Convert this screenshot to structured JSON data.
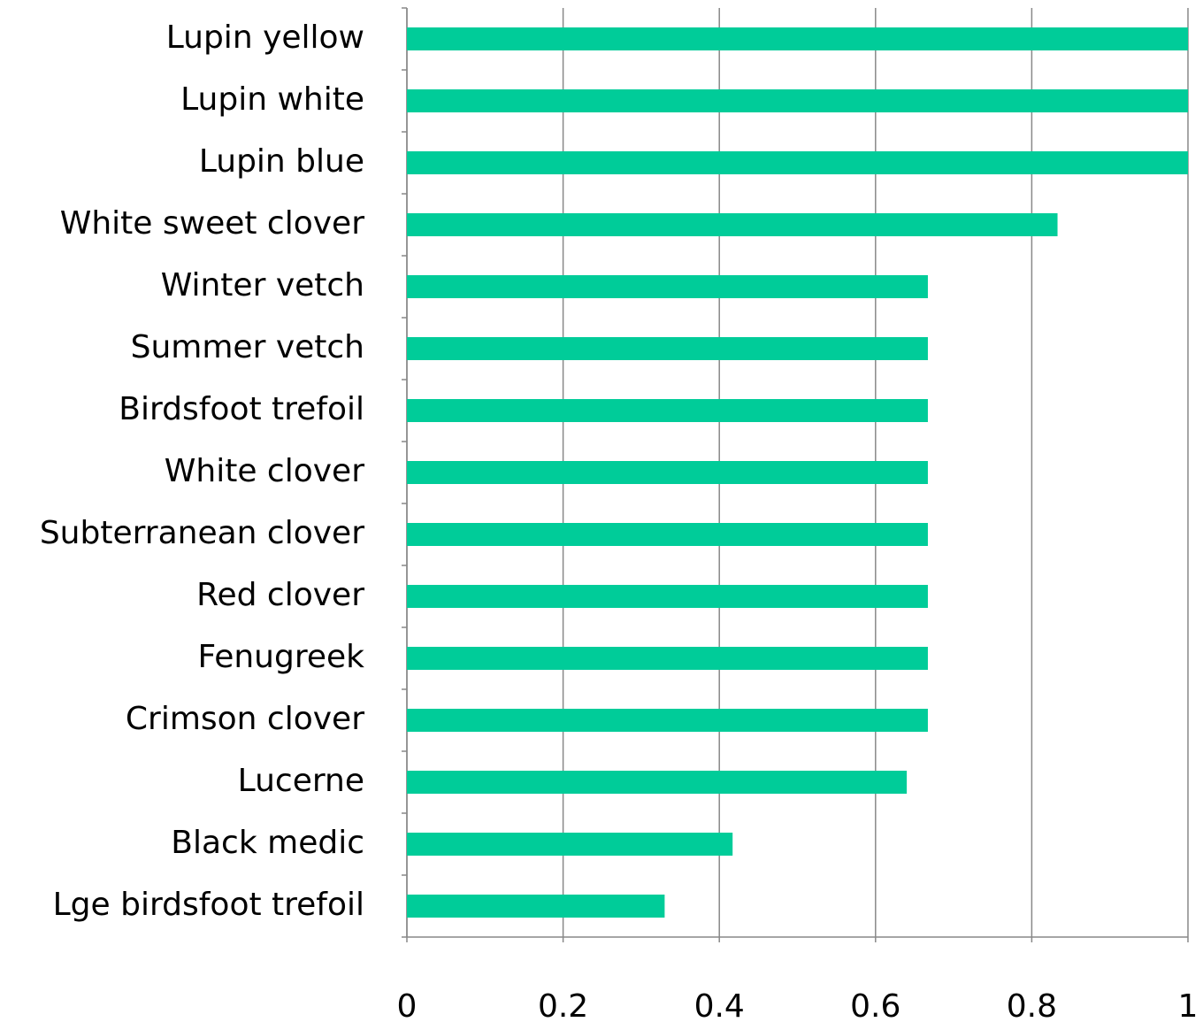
{
  "chart_data": {
    "type": "barh",
    "categories": [
      "Lupin yellow",
      "Lupin white",
      "Lupin blue",
      "White sweet clover",
      "Winter vetch",
      "Summer vetch",
      "Birdsfoot trefoil",
      "White clover",
      "Subterranean clover",
      "Red clover",
      "Fenugreek",
      "Crimson clover",
      "Lucerne",
      "Black medic",
      "Lge birdsfoot trefoil"
    ],
    "values": [
      1,
      1,
      1,
      0.833,
      0.667,
      0.667,
      0.667,
      0.667,
      0.667,
      0.667,
      0.667,
      0.667,
      0.64,
      0.417,
      0.33
    ],
    "color": "#00cc99",
    "xlim": [
      0,
      1
    ],
    "xticks": [
      0,
      0.2,
      0.4,
      0.6,
      0.8,
      1
    ],
    "grid": true
  }
}
